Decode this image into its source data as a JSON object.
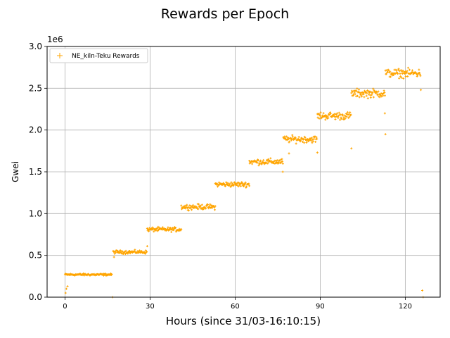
{
  "chart_data": {
    "type": "scatter",
    "title": "Rewards per Epoch",
    "xlabel": "Hours (since 31/03-16:10:15)",
    "ylabel": "Gwei",
    "y_offset_label": "1e6",
    "y_scale_factor": 1000000,
    "xlim": [
      -6.3,
      132.3
    ],
    "ylim": [
      0,
      3.0
    ],
    "xticks": [
      0,
      30,
      60,
      90,
      120
    ],
    "xtick_labels": [
      "0",
      "30",
      "60",
      "90",
      "120"
    ],
    "yticks": [
      0,
      0.5,
      1.0,
      1.5,
      2.0,
      2.5,
      3.0
    ],
    "ytick_labels": [
      "0.0",
      "0.5",
      "1.0",
      "1.5",
      "2.0",
      "2.5",
      "3.0"
    ],
    "grid": true,
    "legend_position": "top-left",
    "marker": "+",
    "series": [
      {
        "name": "NE_kiln-Teku Rewards",
        "color": "#FFA500",
        "segments": [
          {
            "x_start": 0.0,
            "x_end": 16.5,
            "y_mean": 0.27,
            "y_spread": 0.012
          },
          {
            "x_start": 17.0,
            "x_end": 29.0,
            "y_mean": 0.54,
            "y_spread": 0.02
          },
          {
            "x_start": 29.0,
            "x_end": 41.0,
            "y_mean": 0.81,
            "y_spread": 0.025
          },
          {
            "x_start": 41.0,
            "x_end": 53.0,
            "y_mean": 1.08,
            "y_spread": 0.03
          },
          {
            "x_start": 53.0,
            "x_end": 65.0,
            "y_mean": 1.35,
            "y_spread": 0.03
          },
          {
            "x_start": 65.0,
            "x_end": 77.0,
            "y_mean": 1.62,
            "y_spread": 0.035
          },
          {
            "x_start": 77.0,
            "x_end": 89.0,
            "y_mean": 1.89,
            "y_spread": 0.04
          },
          {
            "x_start": 89.0,
            "x_end": 101.0,
            "y_mean": 2.17,
            "y_spread": 0.045
          },
          {
            "x_start": 101.0,
            "x_end": 113.0,
            "y_mean": 2.44,
            "y_spread": 0.05
          },
          {
            "x_start": 113.0,
            "x_end": 125.5,
            "y_mean": 2.68,
            "y_spread": 0.05
          }
        ],
        "outliers": [
          {
            "x": 0.2,
            "y": 0.05
          },
          {
            "x": 0.5,
            "y": 0.1
          },
          {
            "x": 0.9,
            "y": 0.13
          },
          {
            "x": 16.8,
            "y": 0.0
          },
          {
            "x": 17.3,
            "y": 0.48
          },
          {
            "x": 29.0,
            "y": 0.61
          },
          {
            "x": 76.8,
            "y": 1.5
          },
          {
            "x": 79.0,
            "y": 1.72
          },
          {
            "x": 89.0,
            "y": 1.73
          },
          {
            "x": 101.0,
            "y": 1.78
          },
          {
            "x": 112.8,
            "y": 2.2
          },
          {
            "x": 113.0,
            "y": 1.95
          },
          {
            "x": 125.5,
            "y": 2.48
          },
          {
            "x": 126.0,
            "y": 0.08
          },
          {
            "x": 126.3,
            "y": 0.0
          }
        ]
      }
    ]
  }
}
